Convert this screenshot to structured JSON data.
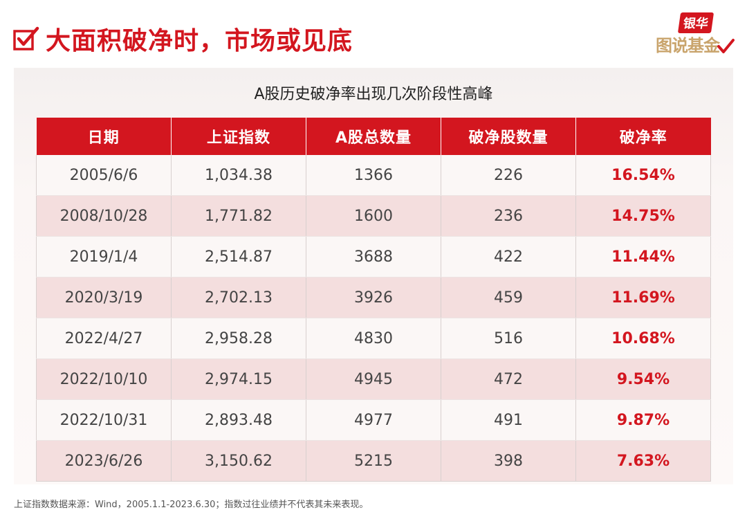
{
  "header": {
    "title": "大面积破净时，市场或见底"
  },
  "logo": {
    "top_text": "银华",
    "bottom_text": "图说基金"
  },
  "colors": {
    "accent": "#d3161f",
    "gold": "#c9a46c"
  },
  "table_title": "A股历史破净率出现几次阶段性高峰",
  "table": {
    "columns": [
      "日期",
      "上证指数",
      "A股总数量",
      "破净股数量",
      "破净率"
    ],
    "rows": [
      [
        "2005/6/6",
        "1,034.38",
        "1366",
        "226",
        "16.54%"
      ],
      [
        "2008/10/28",
        "1,771.82",
        "1600",
        "236",
        "14.75%"
      ],
      [
        "2019/1/4",
        "2,514.87",
        "3688",
        "422",
        "11.44%"
      ],
      [
        "2020/3/19",
        "2,702.13",
        "3926",
        "459",
        "11.69%"
      ],
      [
        "2022/4/27",
        "2,958.28",
        "4830",
        "516",
        "10.68%"
      ],
      [
        "2022/10/10",
        "2,974.15",
        "4945",
        "472",
        "9.54%"
      ],
      [
        "2022/10/31",
        "2,893.48",
        "4977",
        "491",
        "9.87%"
      ],
      [
        "2023/6/26",
        "3,150.62",
        "5215",
        "398",
        "7.63%"
      ]
    ]
  },
  "footnote": "上证指数数据来源：Wind，2005.1.1-2023.6.30；指数过往业绩并不代表其未来表现。"
}
